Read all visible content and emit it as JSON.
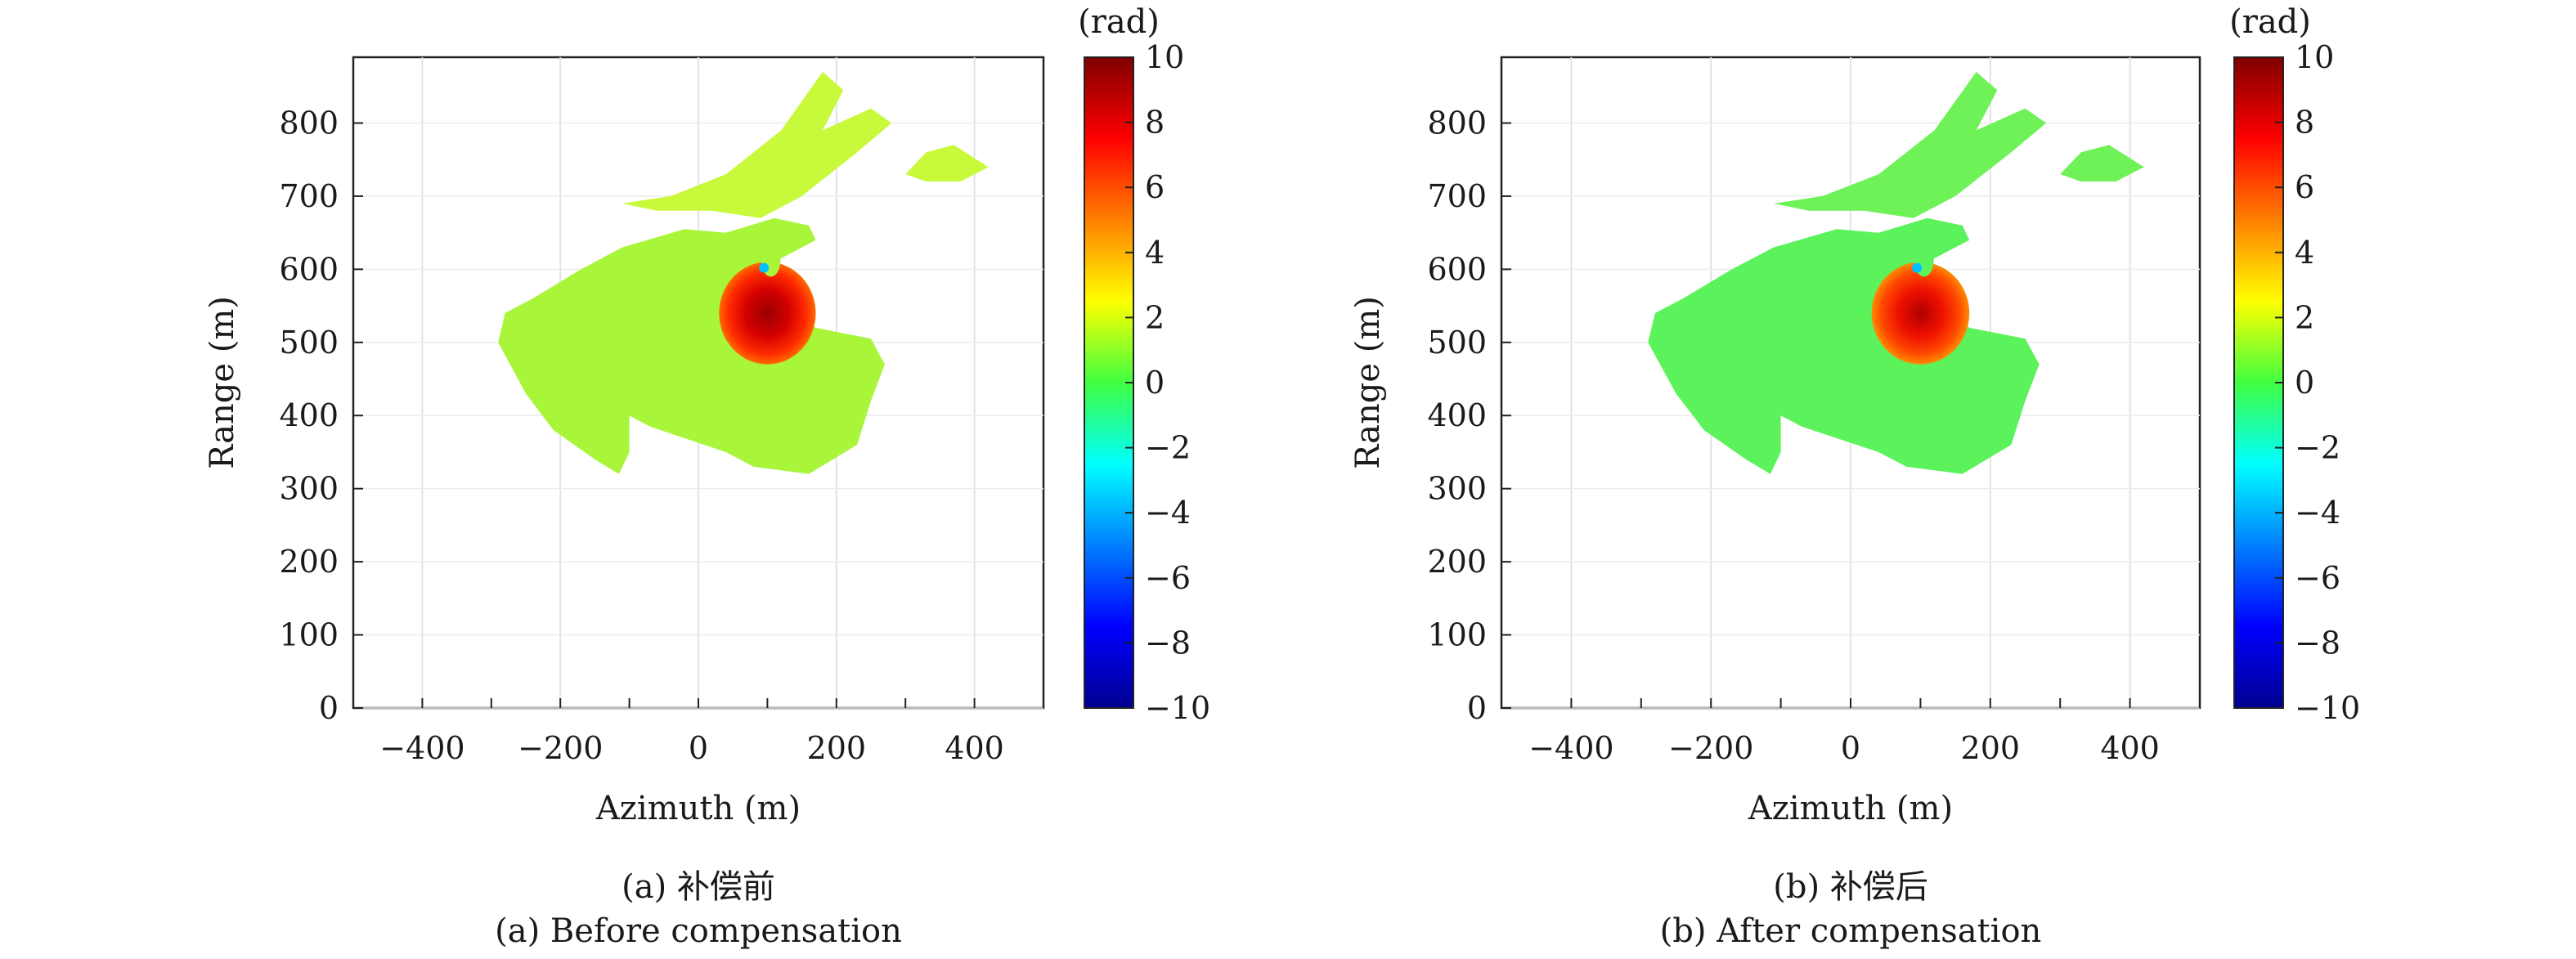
{
  "chart_data": [
    {
      "type": "heatmap",
      "xlabel": "Azimuth (m)",
      "ylabel": "Range (m)",
      "xlim": [
        -500,
        500
      ],
      "ylim": [
        0,
        890
      ],
      "xticks": [
        -400,
        -200,
        0,
        200,
        400
      ],
      "yticks": [
        0,
        100,
        200,
        300,
        400,
        500,
        600,
        700,
        800
      ],
      "colorbar": {
        "unit": "(rad)",
        "range": [
          -10,
          10
        ],
        "ticks": [
          "10",
          "8",
          "6",
          "4",
          "2",
          "0",
          "−2",
          "−4",
          "−6",
          "−8",
          "−10"
        ]
      },
      "caption_cn": "(a) 补偿前",
      "caption_en": "(a) Before compensation",
      "background_phase": 1.8,
      "peak_phase": 8.5,
      "peak_center": [
        100,
        540
      ]
    },
    {
      "type": "heatmap",
      "xlabel": "Azimuth (m)",
      "ylabel": "Range (m)",
      "xlim": [
        -500,
        500
      ],
      "ylim": [
        0,
        890
      ],
      "xticks": [
        -400,
        -200,
        0,
        200,
        400
      ],
      "yticks": [
        0,
        100,
        200,
        300,
        400,
        500,
        600,
        700,
        800
      ],
      "colorbar": {
        "unit": "(rad)",
        "range": [
          -10,
          10
        ],
        "ticks": [
          "10",
          "8",
          "6",
          "4",
          "2",
          "0",
          "−2",
          "−4",
          "−6",
          "−8",
          "−10"
        ]
      },
      "caption_cn": "(b) 补偿后",
      "caption_en": "(b) After compensation",
      "background_phase": 0.3,
      "peak_phase": 7.5,
      "peak_center": [
        100,
        540
      ]
    }
  ]
}
